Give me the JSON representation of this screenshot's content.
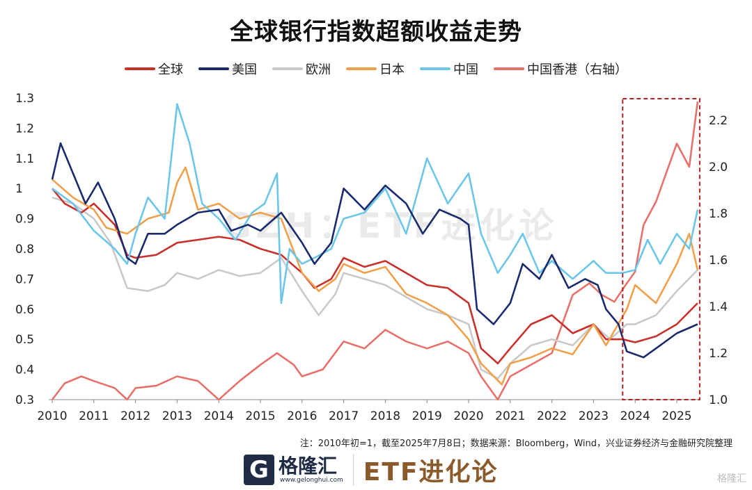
{
  "chart_data": {
    "type": "line",
    "title": "全球银行指数超额收益走势",
    "xlabel": "",
    "ylabel": "",
    "xlim": [
      2010,
      2025.55
    ],
    "ylim_left": [
      0.3,
      1.3
    ],
    "ylim_right": [
      1.0,
      2.3
    ],
    "x_ticks": [
      "2010",
      "2011",
      "2012",
      "2013",
      "2014",
      "2015",
      "2016",
      "2017",
      "2018",
      "2019",
      "2020",
      "2021",
      "2022",
      "2023",
      "2024",
      "2025"
    ],
    "y_ticks_left": [
      "0.3",
      "0.4",
      "0.5",
      "0.6",
      "0.7",
      "0.8",
      "0.9",
      "1",
      "1.1",
      "1.2",
      "1.3"
    ],
    "y_ticks_right": [
      "1.0",
      "1.2",
      "1.4",
      "1.6",
      "1.8",
      "2.0",
      "2.2"
    ],
    "grid": false,
    "legend_position": "top",
    "highlight_box": {
      "x_range": [
        2023.7,
        2025.55
      ],
      "style": "dashed",
      "color": "#b22222"
    },
    "series": [
      {
        "name": "全球",
        "axis": "left",
        "color": "#c8302c",
        "x": [
          2010,
          2010.3,
          2010.7,
          2011,
          2011.5,
          2011.8,
          2012,
          2012.5,
          2013,
          2013.5,
          2014,
          2014.5,
          2015,
          2015.5,
          2016,
          2016.3,
          2016.7,
          2017,
          2017.5,
          2018,
          2018.5,
          2019,
          2019.5,
          2020,
          2020.3,
          2020.7,
          2021,
          2021.5,
          2022,
          2022.5,
          2023,
          2023.3,
          2023.7,
          2024,
          2024.5,
          2025,
          2025.5
        ],
        "y": [
          1.0,
          0.95,
          0.92,
          0.95,
          0.88,
          0.78,
          0.77,
          0.78,
          0.82,
          0.83,
          0.84,
          0.83,
          0.8,
          0.78,
          0.72,
          0.67,
          0.7,
          0.77,
          0.74,
          0.76,
          0.72,
          0.68,
          0.67,
          0.62,
          0.47,
          0.42,
          0.47,
          0.55,
          0.58,
          0.52,
          0.55,
          0.5,
          0.5,
          0.49,
          0.51,
          0.55,
          0.62
        ]
      },
      {
        "name": "美国",
        "axis": "left",
        "color": "#1a2a6c",
        "x": [
          2010,
          2010.2,
          2010.5,
          2010.8,
          2011.1,
          2011.5,
          2011.8,
          2012,
          2012.3,
          2012.7,
          2013,
          2013.5,
          2014,
          2014.3,
          2014.7,
          2015,
          2015.5,
          2016,
          2016.3,
          2016.7,
          2017,
          2017.5,
          2018,
          2018.5,
          2018.9,
          2019.3,
          2019.8,
          2020,
          2020.2,
          2020.6,
          2021,
          2021.3,
          2021.7,
          2022,
          2022.4,
          2022.8,
          2023.1,
          2023.3,
          2023.6,
          2023.8,
          2024.2,
          2024.6,
          2025,
          2025.5
        ],
        "y": [
          1.03,
          1.15,
          1.05,
          0.95,
          1.02,
          0.9,
          0.77,
          0.75,
          0.85,
          0.85,
          0.88,
          0.92,
          0.93,
          0.86,
          0.88,
          0.86,
          0.92,
          0.82,
          0.75,
          0.82,
          1.0,
          0.93,
          1.01,
          0.95,
          0.85,
          0.93,
          0.9,
          0.88,
          0.6,
          0.55,
          0.62,
          0.75,
          0.7,
          0.78,
          0.67,
          0.7,
          0.68,
          0.6,
          0.55,
          0.46,
          0.44,
          0.48,
          0.52,
          0.55
        ]
      },
      {
        "name": "欧洲",
        "axis": "left",
        "color": "#c9c9c9",
        "x": [
          2010,
          2010.5,
          2011,
          2011.4,
          2011.8,
          2012.3,
          2012.7,
          2013,
          2013.5,
          2014,
          2014.5,
          2015,
          2015.5,
          2016,
          2016.4,
          2016.8,
          2017,
          2017.5,
          2018,
          2018.5,
          2019,
          2019.5,
          2020,
          2020.3,
          2020.7,
          2021,
          2021.5,
          2022,
          2022.5,
          2023,
          2023.4,
          2023.8,
          2024,
          2024.5,
          2025,
          2025.5
        ],
        "y": [
          0.97,
          0.95,
          0.9,
          0.82,
          0.67,
          0.66,
          0.68,
          0.72,
          0.7,
          0.73,
          0.71,
          0.72,
          0.77,
          0.66,
          0.58,
          0.65,
          0.72,
          0.7,
          0.68,
          0.64,
          0.6,
          0.58,
          0.55,
          0.4,
          0.37,
          0.42,
          0.48,
          0.5,
          0.48,
          0.55,
          0.5,
          0.55,
          0.55,
          0.58,
          0.66,
          0.73
        ]
      },
      {
        "name": "日本",
        "axis": "left",
        "color": "#f0a04b",
        "x": [
          2010,
          2010.5,
          2011,
          2011.3,
          2011.8,
          2012.3,
          2012.8,
          2013,
          2013.2,
          2013.5,
          2014,
          2014.5,
          2015,
          2015.5,
          2016,
          2016.4,
          2016.8,
          2017,
          2017.5,
          2018,
          2018.5,
          2019,
          2019.5,
          2020,
          2020.3,
          2020.8,
          2021,
          2021.5,
          2022,
          2022.5,
          2023,
          2023.3,
          2023.8,
          2024,
          2024.5,
          2025,
          2025.3,
          2025.5
        ],
        "y": [
          1.03,
          0.97,
          0.93,
          0.87,
          0.85,
          0.9,
          0.92,
          1.02,
          1.07,
          0.93,
          0.95,
          0.9,
          0.92,
          0.9,
          0.72,
          0.66,
          0.7,
          0.75,
          0.72,
          0.74,
          0.65,
          0.62,
          0.58,
          0.5,
          0.42,
          0.35,
          0.42,
          0.44,
          0.47,
          0.45,
          0.55,
          0.48,
          0.6,
          0.68,
          0.62,
          0.75,
          0.85,
          0.73
        ]
      },
      {
        "name": "中国",
        "axis": "left",
        "color": "#6cc6e8",
        "x": [
          2010,
          2010.5,
          2011,
          2011.5,
          2011.8,
          2012,
          2012.3,
          2012.7,
          2013,
          2013.3,
          2013.6,
          2014,
          2014.4,
          2014.8,
          2015.1,
          2015.4,
          2015.5,
          2015.7,
          2016,
          2016.3,
          2016.7,
          2017,
          2017.5,
          2018,
          2018.5,
          2019,
          2019.5,
          2020,
          2020.3,
          2020.7,
          2021,
          2021.3,
          2021.7,
          2022,
          2022.5,
          2023,
          2023.3,
          2023.7,
          2024,
          2024.3,
          2024.6,
          2025,
          2025.3,
          2025.5
        ],
        "y": [
          1.0,
          0.95,
          0.86,
          0.8,
          0.75,
          0.85,
          0.97,
          0.9,
          1.28,
          1.15,
          0.95,
          0.9,
          0.83,
          0.92,
          0.95,
          1.05,
          0.62,
          0.8,
          0.75,
          0.77,
          0.8,
          0.9,
          0.92,
          1.0,
          0.85,
          1.1,
          0.95,
          1.05,
          0.85,
          0.72,
          0.78,
          0.85,
          0.72,
          0.76,
          0.7,
          0.76,
          0.72,
          0.72,
          0.73,
          0.83,
          0.75,
          0.85,
          0.8,
          0.93
        ]
      },
      {
        "name": "中国香港（右轴）",
        "axis": "right",
        "color": "#e8706a",
        "x": [
          2010,
          2010.3,
          2010.7,
          2011,
          2011.5,
          2011.8,
          2012,
          2012.5,
          2013,
          2013.5,
          2014,
          2014.5,
          2015,
          2015.4,
          2015.8,
          2016,
          2016.5,
          2017,
          2017.5,
          2018,
          2018.5,
          2019,
          2019.5,
          2020,
          2020.3,
          2020.7,
          2021,
          2021.5,
          2022,
          2022.5,
          2022.9,
          2023.2,
          2023.5,
          2023.8,
          2024,
          2024.2,
          2024.5,
          2024.8,
          2025,
          2025.3,
          2025.5
        ],
        "y": [
          1.0,
          1.07,
          1.1,
          1.08,
          1.05,
          1.0,
          1.05,
          1.06,
          1.1,
          1.08,
          1.0,
          1.08,
          1.15,
          1.2,
          1.15,
          1.1,
          1.13,
          1.25,
          1.22,
          1.3,
          1.25,
          1.22,
          1.25,
          1.2,
          1.1,
          1.0,
          1.1,
          1.15,
          1.2,
          1.45,
          1.5,
          1.45,
          1.42,
          1.5,
          1.55,
          1.75,
          1.85,
          2.0,
          2.1,
          2.0,
          2.28
        ]
      }
    ]
  },
  "watermark": "GZH：ETF进化论",
  "note": "注：2010年初=1，截至2025年7月8日；数据来源：Bloomberg，Wind，兴业证券经济与金融研究院整理",
  "brand": {
    "logo_letter": "G",
    "name": "格隆汇",
    "url": "www.gelonghui.com",
    "column": "ETF进化论",
    "corner": "格隆汇"
  }
}
